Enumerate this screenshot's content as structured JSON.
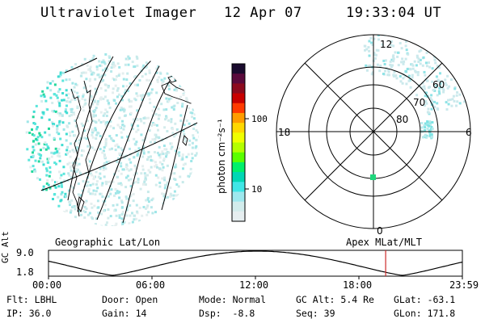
{
  "header": {
    "instrument": "Ultraviolet Imager",
    "date": "12 Apr 07",
    "time": "19:33:04 UT"
  },
  "left_panel": {
    "caption": "Geographic Lat/Lon"
  },
  "right_panel": {
    "caption": "Apex MLat/MLT",
    "mlt_labels": {
      "top": "12",
      "left": "18",
      "right": "6",
      "bottom": "0"
    },
    "mlat_labels": [
      "60",
      "70",
      "80"
    ]
  },
  "colorbar": {
    "unit_label": "photon cm⁻²s⁻¹",
    "ticks": [
      "100",
      "10"
    ],
    "colors": [
      "#1a0b2e",
      "#5a0a3c",
      "#8c0a1e",
      "#c80000",
      "#ff3a00",
      "#ff9c00",
      "#ffd800",
      "#f0ff00",
      "#b4ff00",
      "#5aff00",
      "#00f06a",
      "#00d7b4",
      "#40e6e6",
      "#9ee8ee",
      "#d2ecec",
      "#e6eef0"
    ]
  },
  "altitude_plot": {
    "ylabel": "GC Alt",
    "ymax": "9.0",
    "ymin": "1.8",
    "x_ticks": [
      "00:00",
      "06:00",
      "12:00",
      "18:00",
      "23:59"
    ],
    "current_time_fraction": 0.8147
  },
  "info_rows": [
    [
      {
        "label": "Flt:",
        "value": "LBHL"
      },
      {
        "label": "Door:",
        "value": "Open"
      },
      {
        "label": "Mode:",
        "value": "Normal"
      },
      {
        "label": "GC Alt:",
        "value": "5.4 Re"
      },
      {
        "label": "GLat:",
        "value": "-63.1"
      }
    ],
    [
      {
        "label": "IP:",
        "value": "36.0"
      },
      {
        "label": "Gain:",
        "value": "14"
      },
      {
        "label": "Dsp:",
        "value": "  -8.8"
      },
      {
        "label": "Seq:",
        "value": "39"
      },
      {
        "label": "GLon:",
        "value": "171.8"
      }
    ]
  ]
}
